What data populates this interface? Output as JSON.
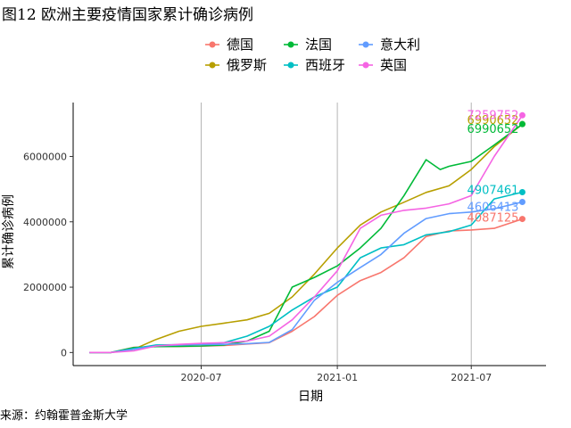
{
  "header": {
    "title": "图12 欧洲主要疫情国家累计确诊病例"
  },
  "footer": {
    "source": "来源：约翰霍普金斯大学"
  },
  "chart_data": {
    "type": "line",
    "title": "图12 欧洲主要疫情国家累计确诊病例",
    "xlabel": "日期",
    "ylabel": "累计确诊病例",
    "x_tick_labels": [
      "2020-07",
      "2021-01",
      "2021-07"
    ],
    "x_ticks": [
      "2020-07-01",
      "2021-01-01",
      "2021-07-01"
    ],
    "y_ticks": [
      0,
      2000000,
      4000000,
      6000000
    ],
    "y_tick_labels": [
      "0",
      "2000000",
      "4000000",
      "6000000"
    ],
    "xlim": [
      "2020-01-10",
      "2021-10-10"
    ],
    "ylim": [
      -400000,
      7650000
    ],
    "grid": "vertical-major",
    "legend_position": "top",
    "series": [
      {
        "name": "德国",
        "color": "#F8766D",
        "end_label": "4087125",
        "x": [
          "2020-02-01",
          "2020-03-01",
          "2020-04-01",
          "2020-05-01",
          "2020-06-01",
          "2020-07-01",
          "2020-08-01",
          "2020-09-01",
          "2020-10-01",
          "2020-11-01",
          "2020-12-01",
          "2021-01-01",
          "2021-02-01",
          "2021-03-01",
          "2021-04-01",
          "2021-05-01",
          "2021-06-01",
          "2021-07-01",
          "2021-08-01",
          "2021-09-08"
        ],
        "y": [
          0,
          100,
          160000,
          180000,
          185000,
          195000,
          215000,
          260000,
          300000,
          650000,
          1100000,
          1750000,
          2200000,
          2450000,
          2900000,
          3550000,
          3720000,
          3750000,
          3800000,
          4087125
        ]
      },
      {
        "name": "俄罗斯",
        "color": "#B79F00",
        "end_label": "6990652",
        "x": [
          "2020-02-01",
          "2020-03-01",
          "2020-04-01",
          "2020-05-01",
          "2020-06-01",
          "2020-07-01",
          "2020-08-01",
          "2020-09-01",
          "2020-10-01",
          "2020-11-01",
          "2020-12-01",
          "2021-01-01",
          "2021-02-01",
          "2021-03-01",
          "2021-04-01",
          "2021-05-01",
          "2021-06-01",
          "2021-07-01",
          "2021-08-01",
          "2021-09-08"
        ],
        "y": [
          0,
          10,
          100000,
          400000,
          650000,
          800000,
          900000,
          1000000,
          1200000,
          1700000,
          2400000,
          3200000,
          3900000,
          4300000,
          4600000,
          4900000,
          5100000,
          5600000,
          6300000,
          6990652
        ]
      },
      {
        "name": "法国",
        "color": "#00BA38",
        "end_label": "6990652",
        "x": [
          "2020-02-01",
          "2020-03-01",
          "2020-04-01",
          "2020-05-01",
          "2020-06-01",
          "2020-07-01",
          "2020-08-01",
          "2020-09-01",
          "2020-10-01",
          "2020-11-01",
          "2020-12-01",
          "2021-01-01",
          "2021-02-01",
          "2021-03-01",
          "2021-04-01",
          "2021-05-01",
          "2021-05-20",
          "2021-06-01",
          "2021-07-01",
          "2021-08-01",
          "2021-09-08"
        ],
        "y": [
          0,
          100,
          150000,
          180000,
          190000,
          200000,
          230000,
          350000,
          650000,
          2000000,
          2300000,
          2650000,
          3200000,
          3800000,
          4800000,
          5900000,
          5600000,
          5700000,
          5850000,
          6350000,
          6990652
        ]
      },
      {
        "name": "西班牙",
        "color": "#00BFC4",
        "end_label": "4907461",
        "x": [
          "2020-02-01",
          "2020-03-01",
          "2020-04-01",
          "2020-05-01",
          "2020-06-01",
          "2020-07-01",
          "2020-08-01",
          "2020-09-01",
          "2020-10-01",
          "2020-11-01",
          "2020-12-01",
          "2021-01-01",
          "2021-02-01",
          "2021-03-01",
          "2021-04-01",
          "2021-05-01",
          "2021-06-01",
          "2021-07-01",
          "2021-08-01",
          "2021-09-08"
        ],
        "y": [
          0,
          100,
          120000,
          230000,
          240000,
          250000,
          300000,
          500000,
          800000,
          1300000,
          1700000,
          2000000,
          2900000,
          3200000,
          3300000,
          3600000,
          3700000,
          3900000,
          4700000,
          4907461
        ]
      },
      {
        "name": "意大利",
        "color": "#619CFF",
        "end_label": "4606413",
        "x": [
          "2020-02-01",
          "2020-03-01",
          "2020-04-01",
          "2020-05-01",
          "2020-06-01",
          "2020-07-01",
          "2020-08-01",
          "2020-09-01",
          "2020-10-01",
          "2020-11-01",
          "2020-12-01",
          "2021-01-01",
          "2021-02-01",
          "2021-03-01",
          "2021-04-01",
          "2021-05-01",
          "2021-06-01",
          "2021-07-01",
          "2021-08-01",
          "2021-09-08"
        ],
        "y": [
          0,
          1000,
          100000,
          200000,
          230000,
          240000,
          250000,
          270000,
          310000,
          700000,
          1600000,
          2150000,
          2600000,
          3000000,
          3650000,
          4100000,
          4250000,
          4300000,
          4400000,
          4606413
        ]
      },
      {
        "name": "英国",
        "color": "#F564E3",
        "end_label": "7259752",
        "x": [
          "2020-02-01",
          "2020-03-01",
          "2020-04-01",
          "2020-05-01",
          "2020-06-01",
          "2020-07-01",
          "2020-08-01",
          "2020-09-01",
          "2020-10-01",
          "2020-11-01",
          "2020-12-01",
          "2021-01-01",
          "2021-02-01",
          "2021-03-01",
          "2021-04-01",
          "2021-05-01",
          "2021-06-01",
          "2021-07-01",
          "2021-08-01",
          "2021-09-08"
        ],
        "y": [
          0,
          100,
          50000,
          200000,
          250000,
          280000,
          300000,
          350000,
          500000,
          1000000,
          1700000,
          2500000,
          3800000,
          4200000,
          4350000,
          4420000,
          4550000,
          4800000,
          6000000,
          7259752
        ]
      }
    ]
  }
}
